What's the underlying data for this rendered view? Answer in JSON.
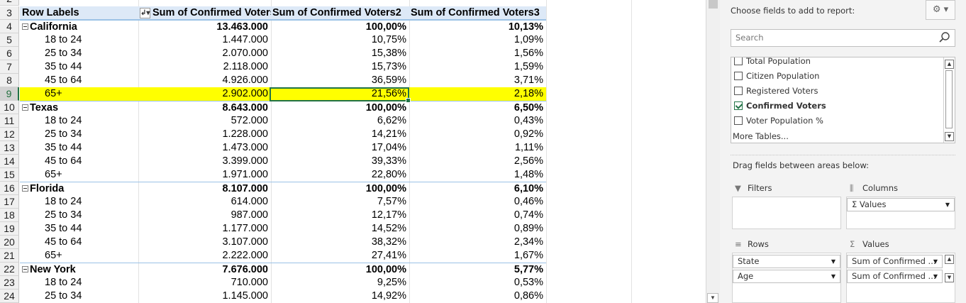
{
  "grid": {
    "partial_row_number": "2",
    "header": {
      "row_number": "3",
      "row_labels": "Row Labels",
      "col1": "Sum of Confirmed Voters",
      "col2": "Sum of Confirmed Voters2",
      "col3": "Sum of Confirmed Voters3"
    },
    "rows": [
      {
        "num": "4",
        "label": "California",
        "v1": "13.463.000",
        "v2": "100,00%",
        "v3": "10,13%",
        "group": true
      },
      {
        "num": "5",
        "label": "18 to 24",
        "v1": "1.447.000",
        "v2": "10,75%",
        "v3": "1,09%"
      },
      {
        "num": "6",
        "label": "25 to 34",
        "v1": "2.070.000",
        "v2": "15,38%",
        "v3": "1,56%"
      },
      {
        "num": "7",
        "label": "35 to 44",
        "v1": "2.118.000",
        "v2": "15,73%",
        "v3": "1,59%"
      },
      {
        "num": "8",
        "label": "45 to 64",
        "v1": "4.926.000",
        "v2": "36,59%",
        "v3": "3,71%"
      },
      {
        "num": "9",
        "label": "65+",
        "v1": "2.902.000",
        "v2": "21,56%",
        "v3": "2,18%",
        "highlight": true
      },
      {
        "num": "10",
        "label": "Texas",
        "v1": "8.643.000",
        "v2": "100,00%",
        "v3": "6,50%",
        "group": true
      },
      {
        "num": "11",
        "label": "18 to 24",
        "v1": "572.000",
        "v2": "6,62%",
        "v3": "0,43%"
      },
      {
        "num": "12",
        "label": "25 to 34",
        "v1": "1.228.000",
        "v2": "14,21%",
        "v3": "0,92%"
      },
      {
        "num": "13",
        "label": "35 to 44",
        "v1": "1.473.000",
        "v2": "17,04%",
        "v3": "1,11%"
      },
      {
        "num": "14",
        "label": "45 to 64",
        "v1": "3.399.000",
        "v2": "39,33%",
        "v3": "2,56%"
      },
      {
        "num": "15",
        "label": "65+",
        "v1": "1.971.000",
        "v2": "22,80%",
        "v3": "1,48%"
      },
      {
        "num": "16",
        "label": "Florida",
        "v1": "8.107.000",
        "v2": "100,00%",
        "v3": "6,10%",
        "group": true
      },
      {
        "num": "17",
        "label": "18 to 24",
        "v1": "614.000",
        "v2": "7,57%",
        "v3": "0,46%"
      },
      {
        "num": "18",
        "label": "25 to 34",
        "v1": "987.000",
        "v2": "12,17%",
        "v3": "0,74%"
      },
      {
        "num": "19",
        "label": "35 to 44",
        "v1": "1.177.000",
        "v2": "14,52%",
        "v3": "0,89%"
      },
      {
        "num": "20",
        "label": "45 to 64",
        "v1": "3.107.000",
        "v2": "38,32%",
        "v3": "2,34%"
      },
      {
        "num": "21",
        "label": "65+",
        "v1": "2.222.000",
        "v2": "27,41%",
        "v3": "1,67%"
      },
      {
        "num": "22",
        "label": "New York",
        "v1": "7.676.000",
        "v2": "100,00%",
        "v3": "5,77%",
        "group": true
      },
      {
        "num": "23",
        "label": "18 to 24",
        "v1": "710.000",
        "v2": "9,25%",
        "v3": "0,53%"
      },
      {
        "num": "24",
        "label": "25 to 34",
        "v1": "1.145.000",
        "v2": "14,92%",
        "v3": "0,86%"
      }
    ],
    "highlight_color": "#ffff00",
    "selection_color": "#217346"
  },
  "pane": {
    "choose_label": "Choose fields to add to report:",
    "gear_icon": "gear-icon",
    "search_placeholder": "Search",
    "fields": [
      {
        "label": "Total Population",
        "checked": false
      },
      {
        "label": "Citizen Population",
        "checked": false
      },
      {
        "label": "Registered Voters",
        "checked": false
      },
      {
        "label": "Confirmed Voters",
        "checked": true
      },
      {
        "label": "Voter Population %",
        "checked": false
      }
    ],
    "more_tables": "More Tables...",
    "drag_label": "Drag fields between areas below:",
    "areas": {
      "filters": "Filters",
      "columns": "Columns",
      "rows": "Rows",
      "values": "Values"
    },
    "columns_items": [
      "Σ Values"
    ],
    "rows_items": [
      "State",
      "Age"
    ],
    "values_items": [
      "Sum of Confirmed ...",
      "Sum of Confirmed ..."
    ]
  }
}
